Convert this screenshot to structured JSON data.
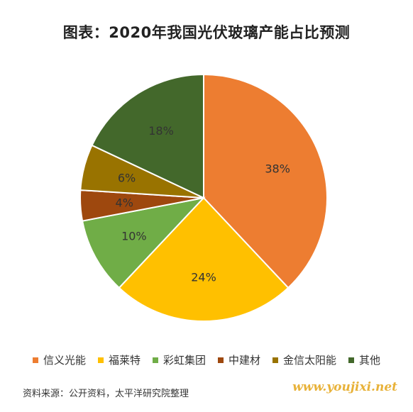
{
  "chart_data": {
    "type": "pie",
    "title": "图表：2020年我国光伏玻璃产能占比预测",
    "slices": [
      {
        "name": "信义光能",
        "value": 38,
        "label": "38%",
        "color": "#ED7D31"
      },
      {
        "name": "福莱特",
        "value": 24,
        "label": "24%",
        "color": "#FFC000"
      },
      {
        "name": "彩虹集团",
        "value": 10,
        "label": "10%",
        "color": "#70AD47"
      },
      {
        "name": "中建材",
        "value": 4,
        "label": "4%",
        "color": "#9E480E"
      },
      {
        "name": "金信太阳能",
        "value": 6,
        "label": "6%",
        "color": "#997300"
      },
      {
        "name": "其他",
        "value": 18,
        "label": "18%",
        "color": "#43682B"
      }
    ],
    "legend_position": "bottom"
  },
  "footer": {
    "source": "资料来源：公开资料，太平洋研究院整理",
    "watermark": "www.youjixi.net"
  }
}
